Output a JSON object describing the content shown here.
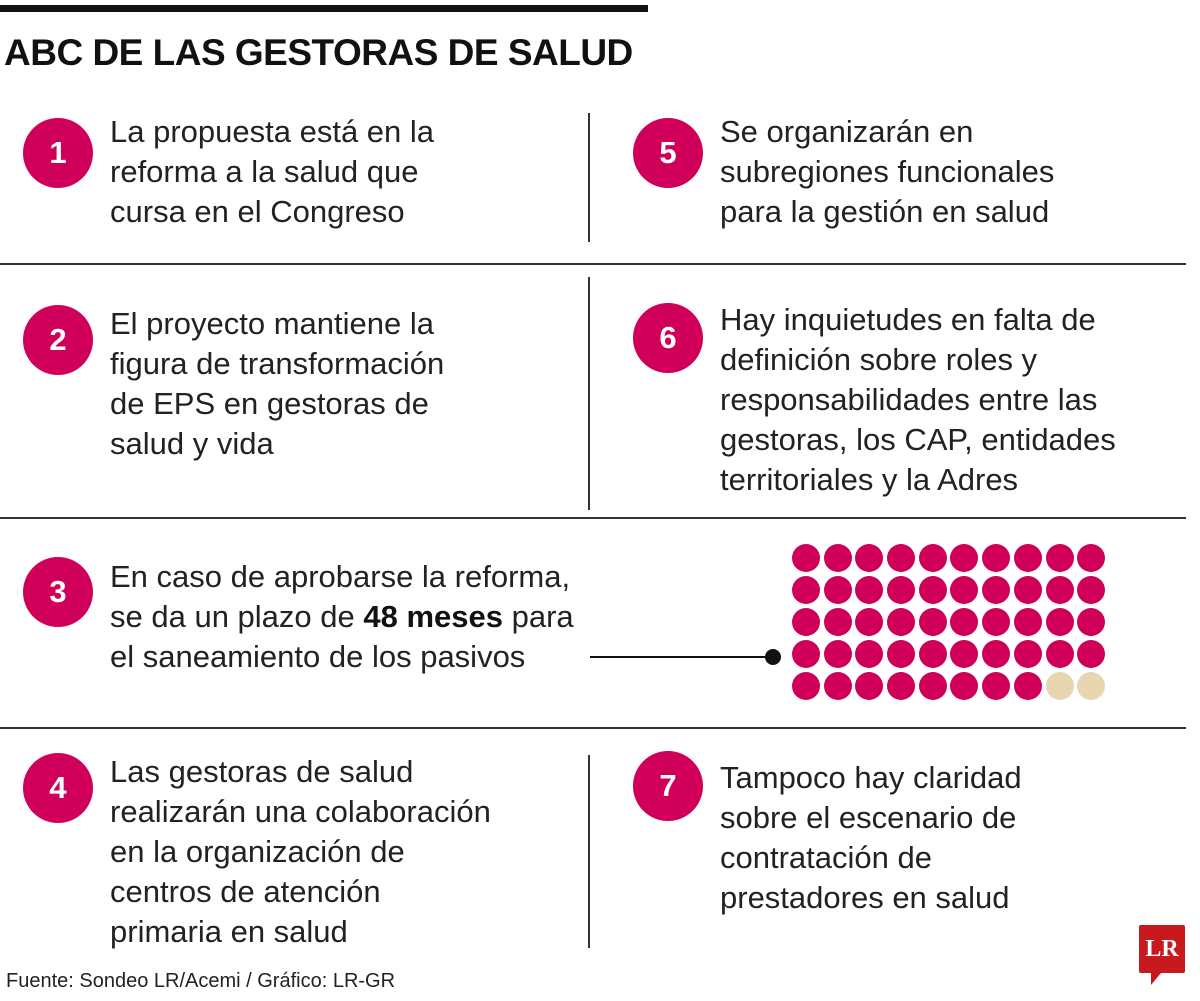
{
  "title": "ABC DE LAS GESTORAS DE SALUD",
  "items": [
    {
      "number": "1",
      "text": "La propuesta está en la\nreforma a la salud que\ncursa en el Congreso"
    },
    {
      "number": "2",
      "text": "El proyecto mantiene la\nfigura de transformación\nde EPS en gestoras de\nsalud y vida"
    },
    {
      "number": "3",
      "text_before": "En caso de aprobarse la reforma,\nse da un plazo de ",
      "highlight": "48 meses",
      "text_after": " para\nel saneamiento de los pasivos"
    },
    {
      "number": "4",
      "text": "Las gestoras de salud\nrealizarán una colaboración\nen la organización de\ncentros de atención\nprimaria en salud"
    },
    {
      "number": "5",
      "text": "Se organizarán en\nsubregiones funcionales\npara la gestión en salud"
    },
    {
      "number": "6",
      "text": "Hay inquietudes en falta de\ndefinición sobre roles y\nresponsabilidades entre las\ngestoras, los CAP, entidades\nterritoriales y la Adres"
    },
    {
      "number": "7",
      "text": "Tampoco hay claridad\nsobre el escenario de\ncontratación de\nprestadores en salud"
    }
  ],
  "dot_grid": {
    "total": 50,
    "filled": 48,
    "filled_color": "#d0005a",
    "empty_color": "#e8d6b0"
  },
  "accent_color": "#d0005a",
  "source": "Fuente: Sondeo LR/Acemi / Gráfico: LR-GR",
  "logo": "LR"
}
